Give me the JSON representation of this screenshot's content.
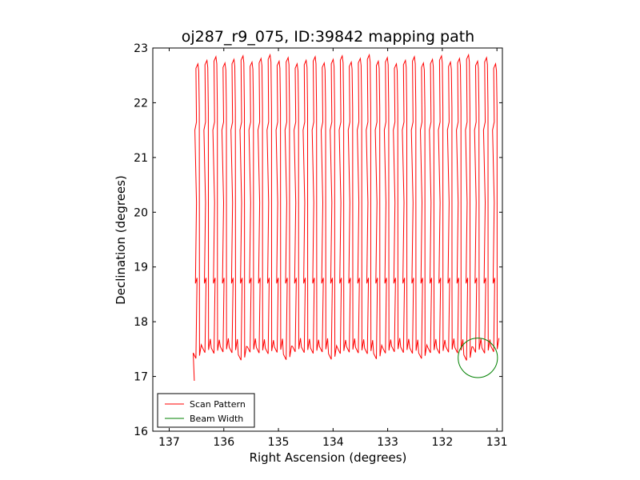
{
  "chart_data": {
    "type": "line",
    "title": "oj287_r9_075, ID:39842 mapping path",
    "xlabel": "Right Ascension (degrees)",
    "ylabel": "Declination (degrees)",
    "xlim": [
      137.3,
      130.9
    ],
    "ylim": [
      16,
      23
    ],
    "x_inverted": true,
    "xticks": [
      137,
      136,
      135,
      134,
      133,
      132,
      131
    ],
    "yticks": [
      16,
      17,
      18,
      19,
      20,
      21,
      22,
      23
    ],
    "grid": false,
    "legend_position": "lower-left",
    "series": [
      {
        "name": "Scan Pattern",
        "color": "#ff0000",
        "style": "line",
        "scan": {
          "ra_start": 136.51,
          "ra_end": 131.06,
          "num_scans": 34,
          "dec_start": 16.92,
          "dec_min": 17.47,
          "dec_max": 22.72,
          "dec_break_upper": 21.6,
          "dec_break_lower": 18.75
        }
      },
      {
        "name": "Beam Width",
        "color": "#008000",
        "style": "circle",
        "center": {
          "x": 131.35,
          "y": 17.34
        },
        "radius": 0.36
      }
    ]
  }
}
